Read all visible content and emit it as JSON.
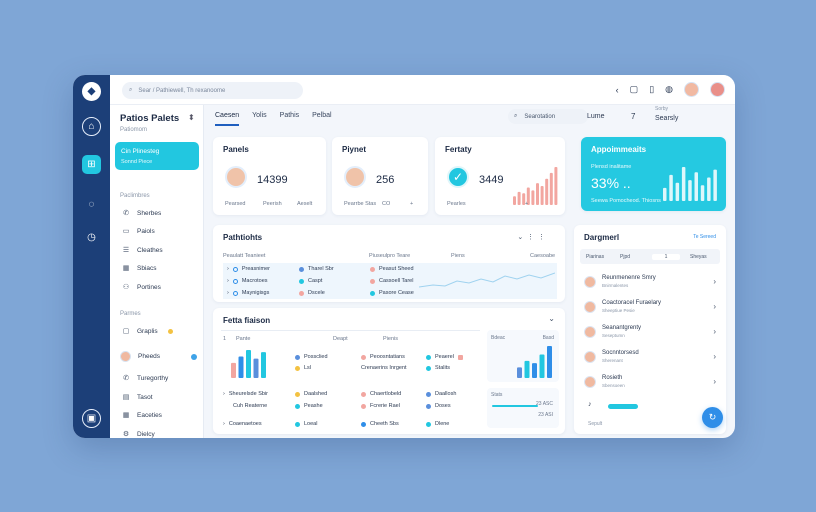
{
  "app": {
    "title": "Patios Palets",
    "subtitle": "Patiomom"
  },
  "search": {
    "placeholder": "Sear / Pathiewell, Th rexanoome"
  },
  "topbar": {
    "icons": [
      "back-icon",
      "window-icon",
      "clipboard-icon",
      "settings-icon"
    ]
  },
  "tabs": [
    {
      "label": "Caesen",
      "active": true
    },
    {
      "label": "Yolis"
    },
    {
      "label": "Pathis"
    },
    {
      "label": "Pelbal"
    }
  ],
  "secondary": {
    "search": "Searotation",
    "label": "Lume",
    "count": "7",
    "sort_label": "Sorby",
    "sort_value": "Searsly"
  },
  "sidebar": {
    "promo": {
      "title": "Cin Plinesteg",
      "sub": "Sonnd Piece"
    },
    "section1": "Paclimbres",
    "items1": [
      {
        "label": "Sherbes",
        "icon": "phone-icon"
      },
      {
        "label": "Paiols",
        "icon": "file-icon"
      },
      {
        "label": "Cleathes",
        "icon": "list-icon"
      },
      {
        "label": "Sbiacs",
        "icon": "calendar-icon"
      },
      {
        "label": "Portines",
        "icon": "people-icon"
      }
    ],
    "section2": "Parmes",
    "items2": [
      {
        "label": "Graplis",
        "icon": "chat-icon"
      },
      {
        "label": "Pheeds",
        "icon": "avatar"
      },
      {
        "label": "Turegorthy",
        "icon": "phone-icon"
      },
      {
        "label": "Tasot",
        "icon": "doc-icon"
      },
      {
        "label": "Eaceties",
        "icon": "grid-icon"
      },
      {
        "label": "Dielcy",
        "icon": "gear-icon"
      }
    ]
  },
  "kpis": [
    {
      "title": "Panels",
      "value": "14399",
      "foot": [
        "Pearsed",
        "Peerish",
        "Aeselt"
      ]
    },
    {
      "title": "Piynet",
      "value": "256",
      "foot": [
        "Pearrbe Stas",
        "CO",
        "+"
      ]
    },
    {
      "title": "Fertaty",
      "value": "3449",
      "foot": [
        "Pearles",
        "+"
      ],
      "bars": [
        6,
        9,
        8,
        12,
        10,
        15,
        13,
        18,
        22,
        26
      ]
    },
    {
      "title": "Appoimmeaits",
      "value": "33% ..",
      "top": "Plensd inalitame",
      "foot": "Seewa Pomocheod. Thiosns",
      "bars": [
        10,
        20,
        14,
        26,
        16,
        22,
        12,
        18,
        24
      ]
    }
  ],
  "patients": {
    "title": "Pathtiohts",
    "headers": [
      "Peaulatt Teanieet",
      "Piuseulpro Teare",
      "Piens",
      "Caesoabe"
    ],
    "rows": [
      [
        "Preasnimer",
        "Tharel Sbr",
        "Peasut Sheed"
      ],
      [
        "Macrotoes",
        "Caspt",
        "Cassoell Tarel"
      ],
      [
        "Maynigisgs",
        "Dscele",
        "Pasore Cease"
      ]
    ]
  },
  "fetta": {
    "title": "Fetta fiaison",
    "headers": [
      "Pante",
      "Deapt",
      "Pienis"
    ],
    "rows": [
      [
        "Sampalfies",
        "Possclied",
        "Peoosntatians",
        "Peaerel"
      ],
      [
        "Llsl",
        "Lsl",
        "Crenaerins Inrgent",
        "Stalits"
      ],
      [
        "Sheurelsde Sbir",
        "Daalshed",
        "Chaertlobeld",
        "Daallosh"
      ],
      [
        "Cuh Reaterne",
        "Peashe",
        "Fcrerie Rael",
        "Doses"
      ],
      [
        "Coaenaetoes",
        "Loeal",
        "Cheeth Sbs",
        "Dlene"
      ]
    ],
    "minichart": {
      "labels": [
        "Bdeac",
        "Basd"
      ],
      "foot": "Stats",
      "values": [
        "23 ASC",
        "23 ASI"
      ]
    }
  },
  "right_panel": {
    "title": "Dargmerl",
    "action": "Te Sereed",
    "filters": [
      "Piarinas",
      "Pjpd",
      "1",
      "Sheyas"
    ],
    "items": [
      {
        "name": "Reunmenenre Smry",
        "sub": "Bnirmalentes"
      },
      {
        "name": "Coactoracel Furaelary",
        "sub": "Sheeptiue Pesie"
      },
      {
        "name": "Seanantgrenty",
        "sub": "Seseptumn"
      },
      {
        "name": "Socnntorsesd",
        "sub": "Sherenant"
      },
      {
        "name": "Rosieth",
        "sub": "Sbensoeen"
      }
    ],
    "foot": "Sepult"
  },
  "colors": {
    "accent": "#22c7e0",
    "nav": "#1c3f78",
    "blue": "#2f8ee8",
    "pink": "#f2a6a0"
  }
}
